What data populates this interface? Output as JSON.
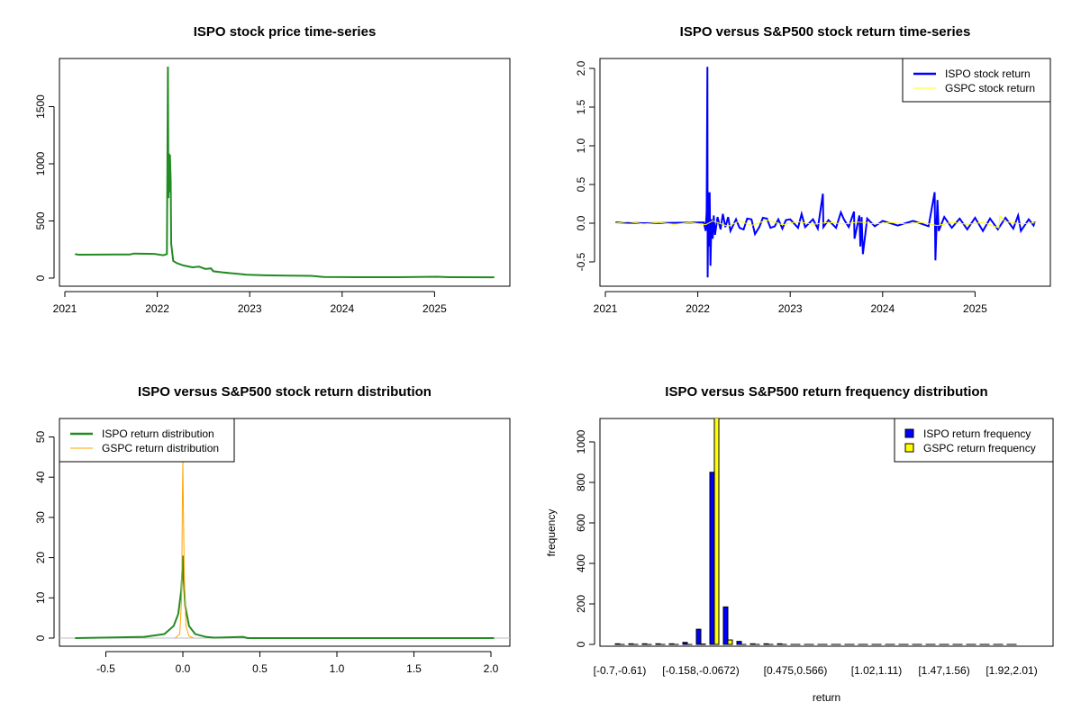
{
  "chart_data": [
    {
      "type": "line",
      "title": "ISPO stock price time-series",
      "xlabel": "",
      "ylabel": "",
      "xticks": [
        "2021",
        "2022",
        "2023",
        "2024",
        "2025"
      ],
      "yticks": [
        "0",
        "500",
        "1000",
        "1500"
      ],
      "ylim": [
        0,
        1900
      ],
      "grid": false,
      "series": [
        {
          "color": "#228B22",
          "points": [
            [
              "2021-02-10",
              210
            ],
            [
              "2021-02-25",
              205
            ],
            [
              "2021-09-15",
              207
            ],
            [
              "2021-10-01",
              215
            ],
            [
              "2021-12-20",
              212
            ],
            [
              "2022-01-25",
              200
            ],
            [
              "2022-02-08",
              210
            ],
            [
              "2022-02-12",
              1850
            ],
            [
              "2022-02-14",
              700
            ],
            [
              "2022-02-16",
              1090
            ],
            [
              "2022-02-18",
              750
            ],
            [
              "2022-02-20",
              1080
            ],
            [
              "2022-02-23",
              850
            ],
            [
              "2022-02-25",
              300
            ],
            [
              "2022-03-05",
              150
            ],
            [
              "2022-03-20",
              130
            ],
            [
              "2022-04-15",
              110
            ],
            [
              "2022-05-20",
              95
            ],
            [
              "2022-06-15",
              100
            ],
            [
              "2022-07-10",
              80
            ],
            [
              "2022-08-01",
              85
            ],
            [
              "2022-08-10",
              60
            ],
            [
              "2022-09-15",
              50
            ],
            [
              "2022-11-01",
              40
            ],
            [
              "2022-12-20",
              30
            ],
            [
              "2023-03-01",
              25
            ],
            [
              "2023-06-01",
              22
            ],
            [
              "2023-09-01",
              20
            ],
            [
              "2023-10-20",
              10
            ],
            [
              "2024-03-01",
              8
            ],
            [
              "2024-08-01",
              8
            ],
            [
              "2025-01-10",
              12
            ],
            [
              "2025-03-01",
              8
            ],
            [
              "2025-08-25",
              7
            ]
          ]
        }
      ]
    },
    {
      "type": "line",
      "title": "ISPO versus S&P500 stock return time-series",
      "xlabel": "",
      "ylabel": "",
      "xticks": [
        "2021",
        "2022",
        "2023",
        "2024",
        "2025"
      ],
      "yticks": [
        "-0.5",
        "0.0",
        "0.5",
        "1.0",
        "1.5",
        "2.0"
      ],
      "ylim": [
        -0.75,
        2.1
      ],
      "grid": false,
      "legend": "top-right",
      "series": [
        {
          "name": "ISPO stock return",
          "color": "#0000FF",
          "points": [
            [
              "2021-02-10",
              0.01
            ],
            [
              "2021-06-01",
              0.0
            ],
            [
              "2022-01-25",
              0.01
            ],
            [
              "2022-02-01",
              -0.1
            ],
            [
              "2022-02-05",
              0.15
            ],
            [
              "2022-02-08",
              2.02
            ],
            [
              "2022-02-09",
              -0.7
            ],
            [
              "2022-02-12",
              0.4
            ],
            [
              "2022-02-14",
              -0.3
            ],
            [
              "2022-02-17",
              0.4
            ],
            [
              "2022-02-20",
              -0.55
            ],
            [
              "2022-02-24",
              0.05
            ],
            [
              "2022-03-01",
              -0.2
            ],
            [
              "2022-03-05",
              0.1
            ],
            [
              "2022-03-10",
              -0.15
            ],
            [
              "2022-03-20",
              0.08
            ],
            [
              "2022-04-01",
              -0.08
            ],
            [
              "2022-04-10",
              0.12
            ],
            [
              "2022-04-20",
              -0.05
            ],
            [
              "2022-05-01",
              0.08
            ],
            [
              "2022-05-10",
              -0.1
            ],
            [
              "2022-06-01",
              0.05
            ],
            [
              "2022-06-15",
              -0.06
            ],
            [
              "2022-07-01",
              -0.08
            ],
            [
              "2022-07-15",
              0.06
            ],
            [
              "2022-08-01",
              0.05
            ],
            [
              "2022-08-15",
              -0.14
            ],
            [
              "2022-09-01",
              -0.05
            ],
            [
              "2022-09-15",
              0.07
            ],
            [
              "2022-10-01",
              0.06
            ],
            [
              "2022-10-15",
              -0.06
            ],
            [
              "2022-11-01",
              -0.04
            ],
            [
              "2022-11-15",
              0.05
            ],
            [
              "2022-12-01",
              -0.07
            ],
            [
              "2022-12-15",
              0.04
            ],
            [
              "2023-01-01",
              0.05
            ],
            [
              "2023-02-01",
              -0.06
            ],
            [
              "2023-02-15",
              0.12
            ],
            [
              "2023-03-01",
              -0.05
            ],
            [
              "2023-04-01",
              0.05
            ],
            [
              "2023-04-20",
              -0.07
            ],
            [
              "2023-05-10",
              0.38
            ],
            [
              "2023-05-12",
              -0.05
            ],
            [
              "2023-06-01",
              0.04
            ],
            [
              "2023-07-01",
              -0.06
            ],
            [
              "2023-07-20",
              0.14
            ],
            [
              "2023-08-01",
              0.05
            ],
            [
              "2023-08-20",
              -0.05
            ],
            [
              "2023-09-10",
              0.15
            ],
            [
              "2023-09-12",
              -0.2
            ],
            [
              "2023-10-01",
              0.1
            ],
            [
              "2023-10-05",
              -0.3
            ],
            [
              "2023-10-10",
              0.08
            ],
            [
              "2023-10-15",
              -0.4
            ],
            [
              "2023-11-01",
              0.06
            ],
            [
              "2023-12-01",
              -0.04
            ],
            [
              "2024-01-01",
              0.03
            ],
            [
              "2024-03-01",
              -0.03
            ],
            [
              "2024-05-01",
              0.03
            ],
            [
              "2024-07-01",
              -0.04
            ],
            [
              "2024-07-25",
              0.4
            ],
            [
              "2024-07-28",
              -0.48
            ],
            [
              "2024-08-05",
              0.3
            ],
            [
              "2024-08-10",
              -0.1
            ],
            [
              "2024-09-01",
              0.08
            ],
            [
              "2024-10-01",
              -0.06
            ],
            [
              "2024-11-01",
              0.06
            ],
            [
              "2024-12-01",
              -0.08
            ],
            [
              "2025-01-01",
              0.07
            ],
            [
              "2025-02-01",
              -0.1
            ],
            [
              "2025-03-01",
              0.06
            ],
            [
              "2025-04-01",
              -0.08
            ],
            [
              "2025-05-01",
              0.07
            ],
            [
              "2025-06-01",
              -0.07
            ],
            [
              "2025-06-20",
              0.1
            ],
            [
              "2025-07-01",
              -0.1
            ],
            [
              "2025-08-01",
              0.05
            ],
            [
              "2025-08-20",
              -0.03
            ],
            [
              "2025-08-25",
              0.02
            ]
          ]
        },
        {
          "name": "GSPC stock return",
          "color": "#FFFF00",
          "points": [
            [
              "2021-02-10",
              0.0
            ],
            [
              "2021-04-01",
              0.02
            ],
            [
              "2021-06-01",
              -0.01
            ],
            [
              "2021-08-01",
              0.01
            ],
            [
              "2021-10-01",
              -0.015
            ],
            [
              "2021-12-01",
              0.01
            ],
            [
              "2022-02-01",
              -0.02
            ],
            [
              "2022-03-01",
              0.03
            ],
            [
              "2022-05-01",
              -0.04
            ],
            [
              "2022-06-15",
              0.03
            ],
            [
              "2022-08-01",
              -0.03
            ],
            [
              "2022-10-01",
              0.04
            ],
            [
              "2022-12-01",
              -0.02
            ],
            [
              "2023-02-01",
              0.02
            ],
            [
              "2023-04-01",
              -0.015
            ],
            [
              "2023-06-01",
              0.01
            ],
            [
              "2023-08-01",
              -0.01
            ],
            [
              "2023-10-01",
              0.015
            ],
            [
              "2023-12-01",
              -0.01
            ],
            [
              "2024-02-01",
              0.01
            ],
            [
              "2024-04-01",
              -0.01
            ],
            [
              "2024-06-01",
              0.01
            ],
            [
              "2024-08-05",
              -0.03
            ],
            [
              "2024-10-01",
              0.01
            ],
            [
              "2024-12-01",
              -0.015
            ],
            [
              "2025-02-01",
              0.01
            ],
            [
              "2025-04-05",
              -0.06
            ],
            [
              "2025-04-09",
              0.095
            ],
            [
              "2025-05-01",
              0.02
            ],
            [
              "2025-07-01",
              -0.01
            ],
            [
              "2025-08-25",
              0.005
            ]
          ]
        }
      ]
    },
    {
      "type": "line",
      "title": "ISPO versus S&P500 stock return distribution",
      "xlabel": "",
      "ylabel": "",
      "xticks": [
        "-0.5",
        "0.0",
        "0.5",
        "1.0",
        "1.5",
        "2.0"
      ],
      "yticks": [
        "0",
        "10",
        "20",
        "30",
        "40",
        "50"
      ],
      "xlim": [
        -0.8,
        2.1
      ],
      "ylim": [
        0,
        52
      ],
      "grid": false,
      "legend": "top-left",
      "series": [
        {
          "name": "ISPO return distribution",
          "color": "#228B22",
          "points": [
            [
              -0.7,
              0
            ],
            [
              -0.25,
              0.3
            ],
            [
              -0.12,
              1
            ],
            [
              -0.06,
              3
            ],
            [
              -0.03,
              6
            ],
            [
              -0.01,
              12
            ],
            [
              -0.003,
              17
            ],
            [
              0,
              20.5
            ],
            [
              0.005,
              15
            ],
            [
              0.015,
              8
            ],
            [
              0.04,
              3
            ],
            [
              0.08,
              1
            ],
            [
              0.15,
              0.3
            ],
            [
              0.2,
              0.1
            ],
            [
              0.39,
              0.3
            ],
            [
              0.42,
              0
            ],
            [
              2.02,
              0
            ]
          ]
        },
        {
          "name": "GSPC return distribution",
          "color": "#FFA500",
          "points": [
            [
              -0.05,
              0
            ],
            [
              -0.02,
              1
            ],
            [
              -0.008,
              10
            ],
            [
              -0.003,
              35
            ],
            [
              0,
              44
            ],
            [
              0.004,
              30
            ],
            [
              0.01,
              14
            ],
            [
              0.02,
              3
            ],
            [
              0.04,
              0.5
            ],
            [
              0.07,
              0
            ]
          ]
        }
      ]
    },
    {
      "type": "bar",
      "title": "ISPO versus S&P500 return frequency distribution",
      "xlabel": "return",
      "ylabel": "frequency",
      "xticks_shown": [
        "[-0.7,-0.61)",
        "[-0.158,-0.0672)",
        "[0.475,0.566)",
        "[1.02,1.11)",
        "[1.47,1.56)",
        "[1.92,2.01)"
      ],
      "xtick_bins": [
        1,
        7,
        14,
        20,
        25,
        30
      ],
      "yticks": [
        "0",
        "200",
        "400",
        "600",
        "800",
        "1000"
      ],
      "ylim": [
        0,
        1110
      ],
      "legend": "top-right",
      "bins": 30,
      "series": [
        {
          "name": "ISPO return frequency",
          "color": "#0000FF",
          "values": [
            3,
            3,
            3,
            3,
            3,
            10,
            75,
            850,
            185,
            15,
            3,
            3,
            3,
            0,
            0,
            0,
            0,
            0,
            0,
            0,
            0,
            0,
            0,
            0,
            0,
            0,
            0,
            0,
            0,
            0
          ]
        },
        {
          "name": "GSPC return frequency",
          "color": "#FFFF00",
          "values": [
            0,
            0,
            0,
            0,
            0,
            0,
            2,
            1130,
            22,
            0,
            0,
            0,
            0,
            0,
            0,
            0,
            0,
            0,
            0,
            0,
            0,
            0,
            0,
            0,
            0,
            0,
            0,
            0,
            0,
            0
          ]
        }
      ]
    }
  ]
}
